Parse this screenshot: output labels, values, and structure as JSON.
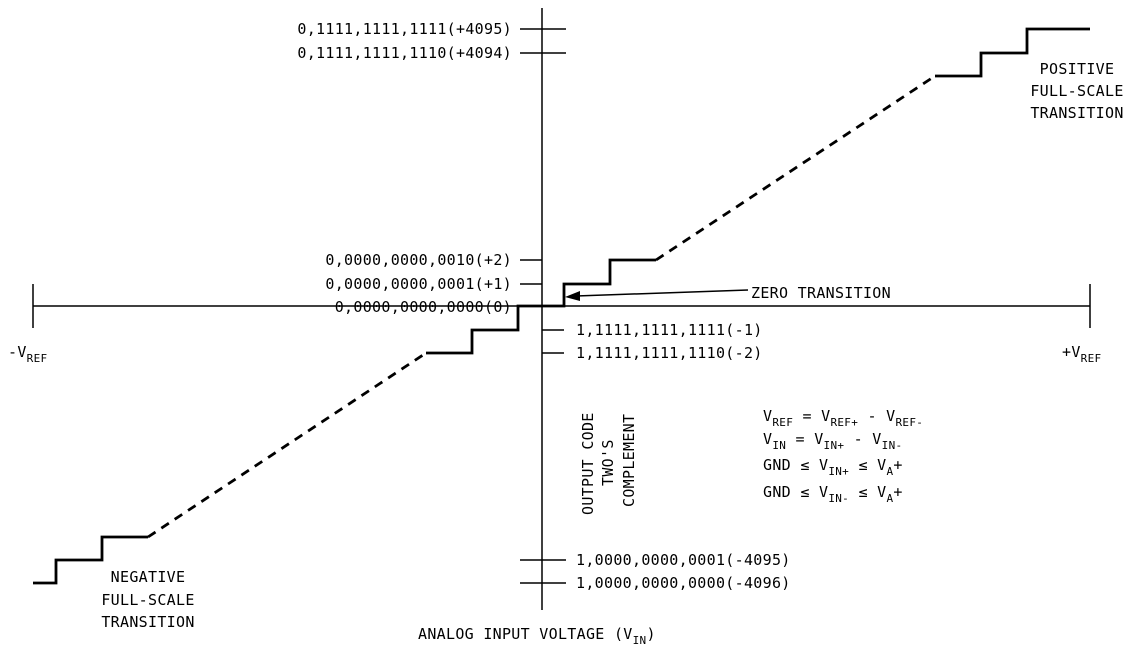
{
  "code_labels": {
    "p4095": "0,1111,1111,1111(+4095)",
    "p4094": "0,1111,1111,1110(+4094)",
    "p2": "0,0000,0000,0010(+2)",
    "p1": "0,0000,0000,0001(+1)",
    "zero": "0,0000,0000,0000(0)",
    "m1": "1,1111,1111,1111(-1)",
    "m2": "1,1111,1111,1110(-2)",
    "m4095": "1,0000,0000,0001(-4095)",
    "m4096": "1,0000,0000,0000(-4096)"
  },
  "axis": {
    "neg_ref": {
      "prefix": "-V",
      "sub": "REF"
    },
    "pos_ref": {
      "prefix": "+V",
      "sub": "REF"
    },
    "x_title": {
      "pre": "ANALOG INPUT VOLTAGE (V",
      "sub": "IN",
      "post": ")"
    },
    "y_title": [
      "OUTPUT CODE",
      "TWO'S",
      "COMPLEMENT"
    ]
  },
  "annotations": {
    "zero_transition": "ZERO TRANSITION",
    "positive_fs": [
      "POSITIVE",
      "FULL-SCALE",
      "TRANSITION"
    ],
    "negative_fs": [
      "NEGATIVE",
      "FULL-SCALE",
      "TRANSITION"
    ]
  },
  "equations": {
    "eq1": {
      "a": "V",
      "a_sub": "REF",
      "b": " = V",
      "b_sub": "REF+",
      "c": " - V",
      "c_sub": "REF-"
    },
    "eq2": {
      "a": "V",
      "a_sub": "IN",
      "b": " = V",
      "b_sub": "IN+",
      "c": " - V",
      "c_sub": "IN-"
    },
    "eq3": {
      "a": "GND ≤ V",
      "a_sub": "IN+",
      "b": " ≤ V",
      "b_sub": "A",
      "c": "+"
    },
    "eq4": {
      "a": "GND ≤ V",
      "a_sub": "IN-",
      "b": " ≤ V",
      "b_sub": "A",
      "c": "+"
    }
  }
}
